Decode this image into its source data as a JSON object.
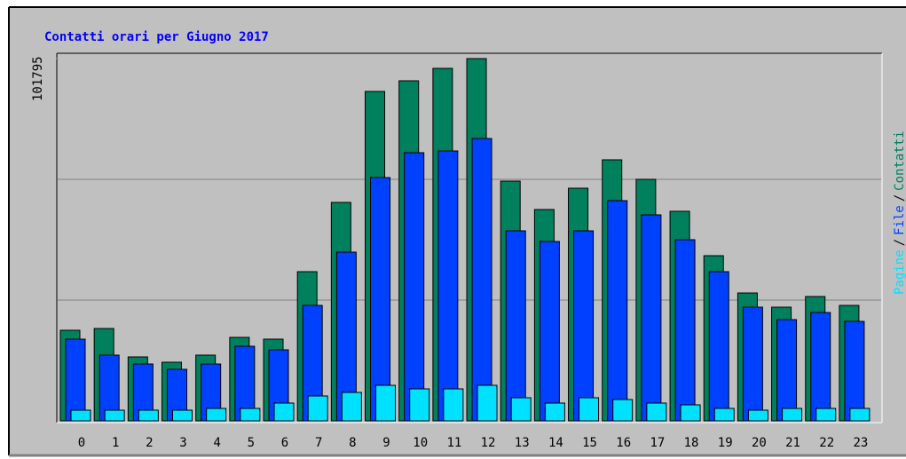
{
  "chart_data": {
    "type": "bar",
    "title": "Contatti orari per Giugno 2017",
    "categories": [
      "0",
      "1",
      "2",
      "3",
      "4",
      "5",
      "6",
      "7",
      "8",
      "9",
      "10",
      "11",
      "12",
      "13",
      "14",
      "15",
      "16",
      "17",
      "18",
      "19",
      "20",
      "21",
      "22",
      "23"
    ],
    "series": [
      {
        "name": "Contatti",
        "color": "#00805c",
        "values": [
          25449,
          25948,
          17964,
          16467,
          18463,
          23453,
          22954,
          41916,
          61377,
          92564,
          95558,
          99051,
          101795,
          67365,
          59381,
          65369,
          73353,
          67864,
          58882,
          46407,
          35928,
          31936,
          34930,
          32435
        ]
      },
      {
        "name": "File",
        "color": "#0040ff",
        "values": [
          22954,
          18463,
          15968,
          14471,
          15968,
          20958,
          19960,
          32435,
          47405,
          68363,
          75349,
          75848,
          79341,
          53393,
          50399,
          53393,
          61876,
          57884,
          50898,
          41916,
          31936,
          28443,
          30439,
          27944
        ]
      },
      {
        "name": "Pagine",
        "color": "#00e0ff",
        "values": [
          2994,
          2994,
          2994,
          2994,
          3493,
          3493,
          4990,
          6986,
          7984,
          9980,
          8982,
          8982,
          9980,
          6487,
          4990,
          6487,
          5988,
          4990,
          4491,
          3493,
          2994,
          3493,
          3493,
          3493
        ]
      }
    ],
    "legend_separator": "/",
    "ylim": [
      0,
      101795
    ],
    "yticks": [
      101795
    ],
    "grid": true
  }
}
